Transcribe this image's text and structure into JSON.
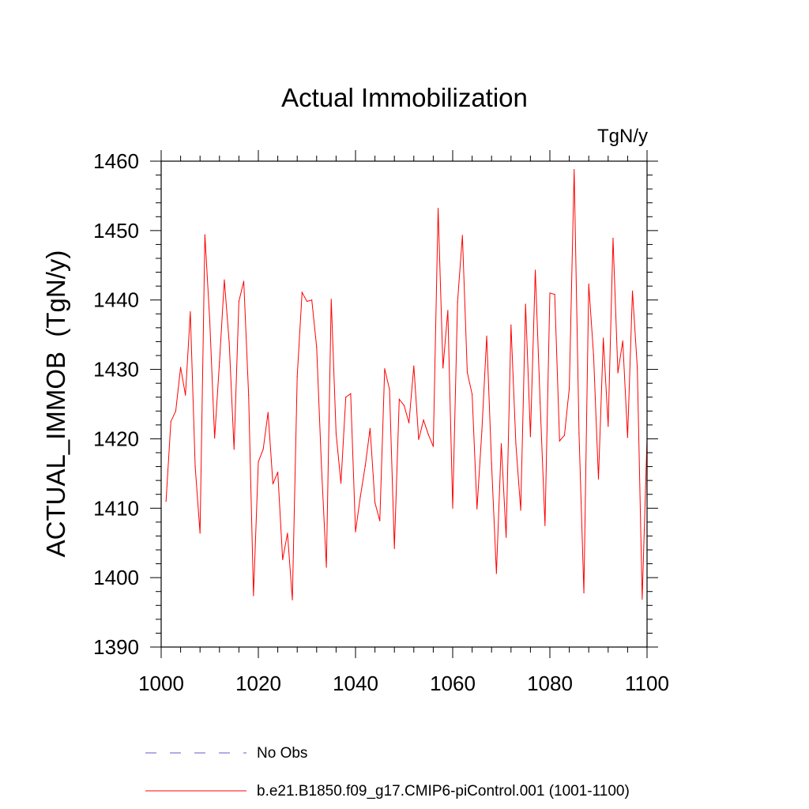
{
  "chart_data": {
    "type": "line",
    "title": "Actual Immobilization",
    "units_label": "TgN/y",
    "xlabel": "",
    "ylabel": "ACTUAL_IMMOB  (TgN/y)",
    "xlim": [
      1000,
      1100
    ],
    "ylim": [
      1390,
      1460
    ],
    "x_ticks": [
      "1000",
      "1020",
      "1040",
      "1060",
      "1080",
      "1100"
    ],
    "y_ticks": [
      "1390",
      "1400",
      "1410",
      "1420",
      "1430",
      "1440",
      "1450",
      "1460"
    ],
    "grid": false,
    "legend_position": "bottom",
    "series": [
      {
        "name": "No Obs",
        "color": "#6a5acd",
        "style": "dashed",
        "values": []
      },
      {
        "name": "b.e21.B1850.f09_g17.CMIP6-piControl.001 (1001-1100)",
        "color": "#ff0000",
        "style": "solid",
        "x_start": 1001,
        "values": [
          1411.0,
          1422.5,
          1424.0,
          1430.3,
          1426.3,
          1438.3,
          1416.0,
          1406.4,
          1449.4,
          1437.0,
          1420.1,
          1431.0,
          1442.9,
          1433.9,
          1418.5,
          1439.8,
          1442.7,
          1426.3,
          1397.4,
          1416.7,
          1418.5,
          1423.8,
          1413.5,
          1415.2,
          1402.6,
          1406.4,
          1396.8,
          1429.0,
          1441.1,
          1439.8,
          1440.0,
          1433.2,
          1415.9,
          1401.5,
          1440.1,
          1420.8,
          1413.6,
          1426.0,
          1426.5,
          1406.6,
          1411.7,
          1416.1,
          1421.5,
          1410.8,
          1408.2,
          1430.1,
          1427.1,
          1404.2,
          1425.7,
          1424.8,
          1422.3,
          1430.5,
          1419.9,
          1422.7,
          1420.6,
          1418.9,
          1453.2,
          1430.2,
          1438.5,
          1410.0,
          1439.7,
          1449.3,
          1429.6,
          1426.4,
          1409.9,
          1421.1,
          1434.8,
          1416.4,
          1400.6,
          1419.3,
          1405.8,
          1436.4,
          1419.3,
          1409.7,
          1439.4,
          1420.3,
          1444.3,
          1425.2,
          1407.5,
          1441.0,
          1440.8,
          1419.7,
          1420.5,
          1427.3,
          1458.8,
          1420.8,
          1397.8,
          1442.3,
          1432.0,
          1414.2,
          1434.5,
          1421.8,
          1448.9,
          1429.5,
          1434.1,
          1420.2,
          1441.3,
          1430.2,
          1396.9,
          1420.0
        ]
      }
    ]
  }
}
